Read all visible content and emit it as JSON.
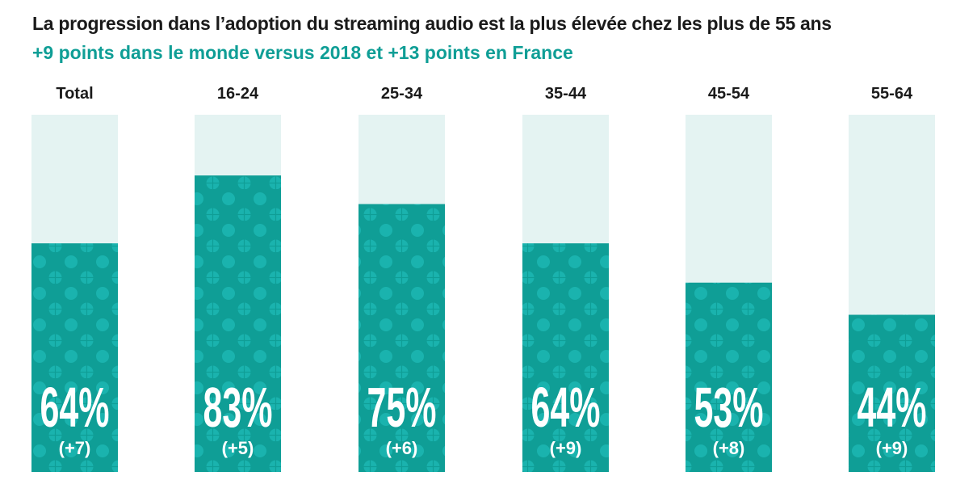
{
  "chart_data": {
    "type": "bar",
    "title": "La progression dans l’adoption du streaming audio est la plus élevée chez les plus de 55 ans",
    "subtitle": "+9 points dans le monde versus 2018 et +13 points en France",
    "categories": [
      "Total",
      "16-24",
      "25-34",
      "35-44",
      "45-54",
      "55-64"
    ],
    "values": [
      64,
      83,
      75,
      64,
      53,
      44
    ],
    "value_labels": [
      "64%",
      "83%",
      "75%",
      "64%",
      "53%",
      "44%"
    ],
    "deltas": [
      "(+7)",
      "(+5)",
      "(+6)",
      "(+9)",
      "(+8)",
      "(+9)"
    ],
    "ylim": [
      0,
      100
    ],
    "xlabel": "",
    "ylabel": "",
    "grid": false,
    "colors": {
      "bar": "#0f9e96",
      "bar_dot": "#1ab3ae",
      "track": "#e4f3f2",
      "title": "#1a1a1a",
      "subtitle": "#0f9e96"
    }
  }
}
